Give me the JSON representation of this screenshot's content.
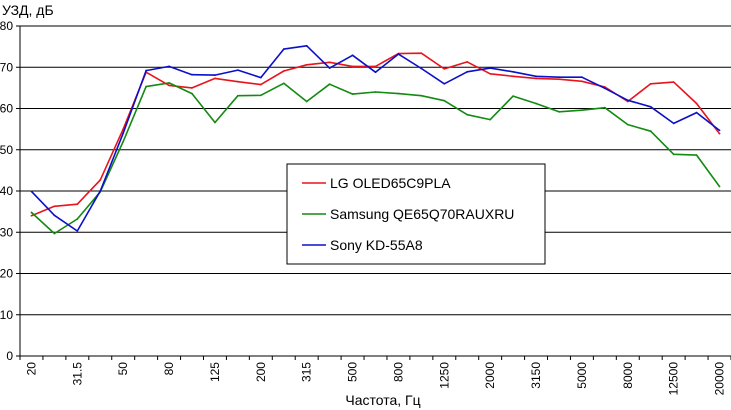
{
  "chart_data": {
    "type": "line",
    "title": "",
    "ylabel": "УЗД, дБ",
    "xlabel": "Частота, Гц",
    "ylim": [
      0,
      80
    ],
    "yticks": [
      0,
      10,
      20,
      30,
      40,
      50,
      60,
      70,
      80
    ],
    "grid": "horizontal",
    "legend_position": "center",
    "categories": [
      "20",
      "25",
      "31.5",
      "40",
      "50",
      "63",
      "80",
      "100",
      "125",
      "160",
      "200",
      "250",
      "315",
      "400",
      "500",
      "630",
      "800",
      "1000",
      "1250",
      "1600",
      "2000",
      "2500",
      "3150",
      "4000",
      "5000",
      "6300",
      "8000",
      "10000",
      "12500",
      "16000",
      "20000"
    ],
    "category_labels_shown": [
      "20",
      "31.5",
      "50",
      "80",
      "125",
      "200",
      "315",
      "500",
      "800",
      "1250",
      "2000",
      "3150",
      "5000",
      "8000",
      "12500",
      "20000"
    ],
    "series": [
      {
        "name": "LG OLED65C9PLA",
        "color": "#e8141c",
        "values": [
          34.0,
          36.3,
          36.8,
          42.7,
          55.0,
          68.8,
          65.6,
          65.0,
          67.3,
          66.5,
          65.8,
          69.1,
          70.6,
          71.2,
          70.2,
          70.2,
          73.3,
          73.4,
          69.6,
          71.3,
          68.4,
          67.8,
          67.3,
          67.1,
          66.6,
          65.2,
          61.7,
          66.0,
          66.4,
          61.2,
          53.9
        ]
      },
      {
        "name": "Samsung QE65Q70RAUXRU",
        "color": "#138a12",
        "values": [
          34.8,
          29.7,
          33.2,
          39.8,
          52.0,
          65.3,
          66.2,
          63.6,
          56.6,
          63.1,
          63.2,
          66.1,
          61.7,
          65.9,
          63.5,
          64.0,
          63.6,
          63.1,
          61.9,
          58.5,
          57.3,
          63.0,
          61.2,
          59.2,
          59.6,
          60.2,
          56.1,
          54.5,
          48.9,
          48.7,
          41.1
        ]
      },
      {
        "name": "Sony KD-55A8",
        "color": "#0b10c8",
        "values": [
          39.9,
          34.1,
          30.3,
          40.0,
          54.0,
          69.2,
          70.2,
          68.2,
          68.1,
          69.3,
          67.5,
          74.4,
          75.2,
          69.8,
          72.9,
          68.8,
          73.2,
          69.7,
          66.0,
          68.9,
          69.8,
          68.9,
          67.8,
          67.6,
          67.6,
          64.9,
          62.0,
          60.4,
          56.4,
          59.0,
          54.7
        ]
      }
    ]
  }
}
